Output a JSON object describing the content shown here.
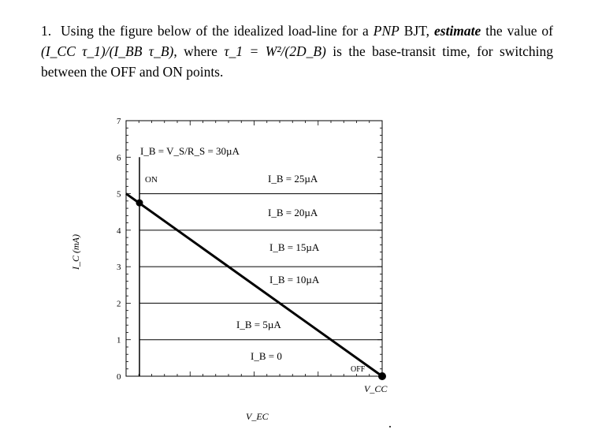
{
  "question": {
    "number": "1.",
    "part1": "Using the figure below of the idealized load-line for a",
    "pnp": "PNP",
    "part2": "BJT,",
    "estimate": "estimate",
    "part3": "the value of",
    "formula": "(I_CC τ_1)/(I_BB τ_B)",
    "part4": ", where",
    "tau_def": "τ_1 = W²/(2D_B)",
    "part5": "is the base-transit time, for switching between the OFF and ON points."
  },
  "chart_data": {
    "type": "line",
    "ylabel": "I_C (mA)",
    "xlabel": "V_EC",
    "ylim": [
      0,
      7
    ],
    "yticks": [
      "0",
      "1",
      "2",
      "3",
      "4",
      "5",
      "6",
      "7"
    ],
    "grid": false,
    "load_line": {
      "from": {
        "x": 0,
        "y": 5
      },
      "to": {
        "x": "V_CC",
        "y": 0
      }
    },
    "base_current_lines_mA": [
      1,
      2,
      3,
      4,
      5
    ],
    "saturation_line_top": 6,
    "points": [
      {
        "label": "ON",
        "y": 4.75
      },
      {
        "label": "OFF",
        "y": 0
      }
    ],
    "annotations": {
      "ib_source": "I_B = V_S/R_S = 30µA",
      "on": "ON",
      "off": "OFF",
      "vcc": "V_CC",
      "ib_levels": [
        "I_B = 25µA",
        "I_B = 20µA",
        "I_B = 15µA",
        "I_B = 10µA",
        "I_B = 5µA",
        "I_B = 0"
      ]
    }
  }
}
